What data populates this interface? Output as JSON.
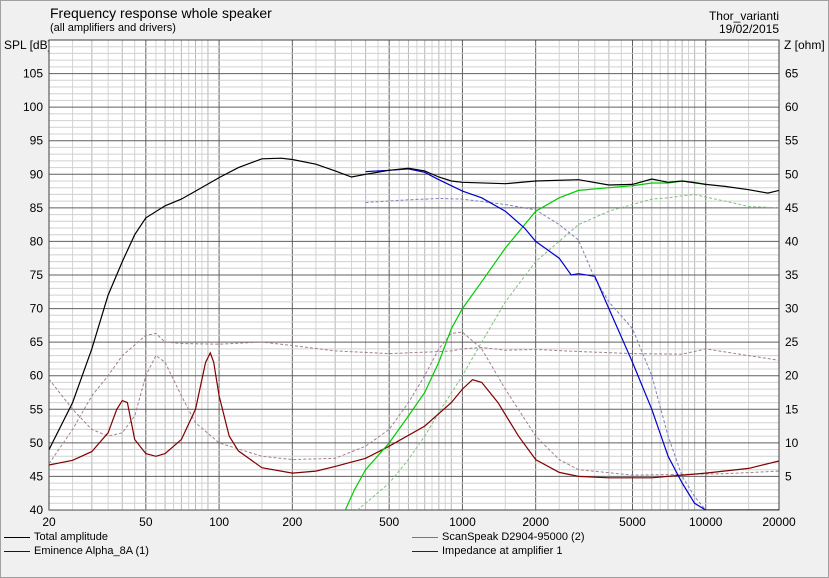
{
  "header": {
    "title": "Frequency response whole speaker",
    "subtitle": "(all amplifiers and drivers)",
    "project": "Thor_varianti",
    "date": "19/02/2015"
  },
  "chart_data": {
    "type": "line",
    "x_scale": "log",
    "xlim": [
      20,
      20000
    ],
    "ylim": [
      40,
      110
    ],
    "y2lim": [
      0,
      70
    ],
    "ylabel": "SPL [dB]",
    "y2label": "Z [ohm]",
    "x_ticks": [
      "20",
      "50",
      "100",
      "200",
      "500",
      "1000",
      "2000",
      "5000",
      "10000",
      "20000"
    ],
    "y_ticks": [
      "40",
      "45",
      "50",
      "55",
      "60",
      "65",
      "70",
      "75",
      "80",
      "85",
      "90",
      "95",
      "100",
      "105"
    ],
    "y2_ticks": [
      "5",
      "10",
      "15",
      "20",
      "25",
      "30",
      "35",
      "40",
      "45",
      "50",
      "55",
      "60",
      "65"
    ],
    "grid": true,
    "series": [
      {
        "name": "Total amplitude",
        "color": "#000000",
        "dash": false,
        "axis": "left",
        "points": [
          [
            20,
            49
          ],
          [
            25,
            56
          ],
          [
            30,
            64
          ],
          [
            35,
            72
          ],
          [
            40,
            77
          ],
          [
            45,
            81
          ],
          [
            50,
            83.5
          ],
          [
            60,
            85.3
          ],
          [
            70,
            86.3
          ],
          [
            80,
            87.5
          ],
          [
            100,
            89.5
          ],
          [
            120,
            91
          ],
          [
            150,
            92.3
          ],
          [
            180,
            92.4
          ],
          [
            200,
            92.2
          ],
          [
            250,
            91.5
          ],
          [
            300,
            90.5
          ],
          [
            350,
            89.6
          ],
          [
            400,
            90
          ],
          [
            500,
            90.6
          ],
          [
            600,
            90.9
          ],
          [
            700,
            90.5
          ],
          [
            800,
            89.6
          ],
          [
            900,
            89
          ],
          [
            1000,
            88.8
          ],
          [
            1500,
            88.6
          ],
          [
            2000,
            89
          ],
          [
            3000,
            89.2
          ],
          [
            4000,
            88.4
          ],
          [
            5000,
            88.5
          ],
          [
            6000,
            89.3
          ],
          [
            7000,
            88.8
          ],
          [
            8000,
            89
          ],
          [
            10000,
            88.5
          ],
          [
            12000,
            88.2
          ],
          [
            15000,
            87.7
          ],
          [
            18000,
            87.2
          ],
          [
            20000,
            87.6
          ]
        ]
      },
      {
        "name": "ScanSpeak D2904-95000 (2)",
        "color": "#00cc00",
        "dash": false,
        "axis": "left",
        "points": [
          [
            20,
            40
          ],
          [
            330,
            40
          ],
          [
            360,
            43
          ],
          [
            400,
            46
          ],
          [
            500,
            50
          ],
          [
            600,
            54
          ],
          [
            700,
            57.5
          ],
          [
            800,
            62
          ],
          [
            900,
            67
          ],
          [
            1000,
            70
          ],
          [
            1200,
            74
          ],
          [
            1500,
            79
          ],
          [
            2000,
            84.5
          ],
          [
            2500,
            86.5
          ],
          [
            3000,
            87.6
          ],
          [
            4000,
            88
          ],
          [
            5000,
            88.3
          ],
          [
            6000,
            88.7
          ],
          [
            7000,
            88.7
          ],
          [
            8000,
            89
          ],
          [
            9000,
            88.8
          ],
          [
            10000,
            88.5
          ]
        ]
      },
      {
        "name": "Eminence Alpha_8A (1)",
        "color": "#0000cc",
        "dash": false,
        "axis": "left",
        "points": [
          [
            400,
            90.4
          ],
          [
            500,
            90.6
          ],
          [
            600,
            90.8
          ],
          [
            700,
            90.3
          ],
          [
            800,
            89.2
          ],
          [
            900,
            88.3
          ],
          [
            1000,
            87.5
          ],
          [
            1200,
            86.5
          ],
          [
            1500,
            84.5
          ],
          [
            1800,
            82
          ],
          [
            2000,
            80
          ],
          [
            2500,
            77.5
          ],
          [
            2800,
            75
          ],
          [
            3000,
            75.2
          ],
          [
            3500,
            74.8
          ],
          [
            4000,
            70
          ],
          [
            5000,
            62
          ],
          [
            6000,
            55
          ],
          [
            7000,
            48
          ],
          [
            8000,
            44
          ],
          [
            9000,
            41
          ],
          [
            10000,
            40
          ],
          [
            20000,
            40
          ]
        ]
      },
      {
        "name": "Impedance at amplifier 1",
        "color": "#800000",
        "dash": false,
        "axis": "right",
        "points": [
          [
            20,
            6.7
          ],
          [
            25,
            7.4
          ],
          [
            30,
            8.7
          ],
          [
            35,
            11.5
          ],
          [
            38,
            15
          ],
          [
            40,
            16.3
          ],
          [
            42,
            16
          ],
          [
            45,
            10.5
          ],
          [
            50,
            8.4
          ],
          [
            55,
            8
          ],
          [
            60,
            8.4
          ],
          [
            70,
            10.5
          ],
          [
            80,
            15
          ],
          [
            88,
            22
          ],
          [
            92,
            23.4
          ],
          [
            95,
            22
          ],
          [
            100,
            17
          ],
          [
            110,
            11
          ],
          [
            120,
            8.8
          ],
          [
            150,
            6.3
          ],
          [
            200,
            5.5
          ],
          [
            250,
            5.8
          ],
          [
            300,
            6.5
          ],
          [
            400,
            7.7
          ],
          [
            500,
            9.5
          ],
          [
            700,
            12.5
          ],
          [
            900,
            16
          ],
          [
            1000,
            18
          ],
          [
            1100,
            19.4
          ],
          [
            1200,
            19
          ],
          [
            1400,
            16
          ],
          [
            1700,
            11
          ],
          [
            2000,
            7.5
          ],
          [
            2500,
            5.6
          ],
          [
            3000,
            5
          ],
          [
            4000,
            4.8
          ],
          [
            6000,
            4.8
          ],
          [
            8000,
            5.2
          ],
          [
            10000,
            5.5
          ],
          [
            15000,
            6.2
          ],
          [
            20000,
            7.3
          ]
        ]
      },
      {
        "name": "",
        "color": "#a08090",
        "dash": true,
        "axis": "right",
        "points": [
          [
            20,
            6.9
          ],
          [
            25,
            12
          ],
          [
            30,
            17
          ],
          [
            35,
            20
          ],
          [
            40,
            23
          ],
          [
            50,
            26
          ],
          [
            55,
            26.3
          ],
          [
            60,
            25
          ],
          [
            70,
            24.8
          ],
          [
            100,
            24.7
          ],
          [
            150,
            25
          ],
          [
            200,
            24.5
          ],
          [
            300,
            23.7
          ],
          [
            500,
            23.3
          ],
          [
            700,
            23.5
          ],
          [
            900,
            23.7
          ],
          [
            1000,
            24
          ],
          [
            1200,
            24.2
          ],
          [
            1500,
            23.8
          ],
          [
            2000,
            23.9
          ],
          [
            3000,
            23.6
          ],
          [
            5000,
            23.3
          ],
          [
            8000,
            23.2
          ],
          [
            10000,
            24
          ],
          [
            15000,
            23
          ],
          [
            20000,
            22.3
          ]
        ]
      },
      {
        "name": "",
        "color": "#a08090",
        "dash": true,
        "axis": "right",
        "points": [
          [
            20,
            19.5
          ],
          [
            25,
            15
          ],
          [
            30,
            12
          ],
          [
            35,
            11
          ],
          [
            40,
            11.5
          ],
          [
            45,
            14
          ],
          [
            50,
            20
          ],
          [
            55,
            23
          ],
          [
            60,
            22
          ],
          [
            70,
            17
          ],
          [
            80,
            13
          ],
          [
            100,
            10
          ],
          [
            150,
            8
          ],
          [
            200,
            7.5
          ],
          [
            300,
            7.7
          ],
          [
            400,
            9.5
          ],
          [
            500,
            12
          ],
          [
            600,
            16
          ],
          [
            700,
            20
          ],
          [
            800,
            24
          ],
          [
            900,
            26.3
          ],
          [
            1000,
            26.5
          ],
          [
            1200,
            24
          ],
          [
            1500,
            18
          ],
          [
            2000,
            11
          ],
          [
            2500,
            7.5
          ],
          [
            3000,
            6
          ],
          [
            5000,
            5.2
          ],
          [
            8000,
            5.3
          ],
          [
            12000,
            5.4
          ],
          [
            20000,
            5.8
          ]
        ]
      },
      {
        "name": "",
        "color": "#80c080",
        "dash": true,
        "axis": "left",
        "points": [
          [
            370,
            40
          ],
          [
            400,
            41
          ],
          [
            500,
            44
          ],
          [
            600,
            47.5
          ],
          [
            700,
            51
          ],
          [
            800,
            54.5
          ],
          [
            1000,
            60
          ],
          [
            1200,
            65
          ],
          [
            1500,
            71
          ],
          [
            2000,
            77
          ],
          [
            3000,
            82.5
          ],
          [
            4000,
            84.5
          ],
          [
            5000,
            85.5
          ],
          [
            6000,
            86.3
          ],
          [
            7000,
            86.5
          ],
          [
            8000,
            86.8
          ],
          [
            9000,
            87
          ],
          [
            10000,
            86.6
          ],
          [
            12000,
            86
          ],
          [
            15000,
            85.2
          ],
          [
            20000,
            85
          ]
        ]
      },
      {
        "name": "",
        "color": "#8080c0",
        "dash": true,
        "axis": "left",
        "points": [
          [
            400,
            85.8
          ],
          [
            600,
            86.2
          ],
          [
            800,
            86.4
          ],
          [
            1000,
            86.3
          ],
          [
            1500,
            85.5
          ],
          [
            2000,
            84.7
          ],
          [
            2500,
            82.5
          ],
          [
            3000,
            80.2
          ],
          [
            3500,
            74.5
          ],
          [
            4000,
            71
          ],
          [
            5000,
            67
          ],
          [
            6000,
            60
          ],
          [
            7000,
            51
          ],
          [
            8000,
            45
          ],
          [
            9000,
            42
          ],
          [
            10000,
            40
          ]
        ]
      }
    ]
  }
}
